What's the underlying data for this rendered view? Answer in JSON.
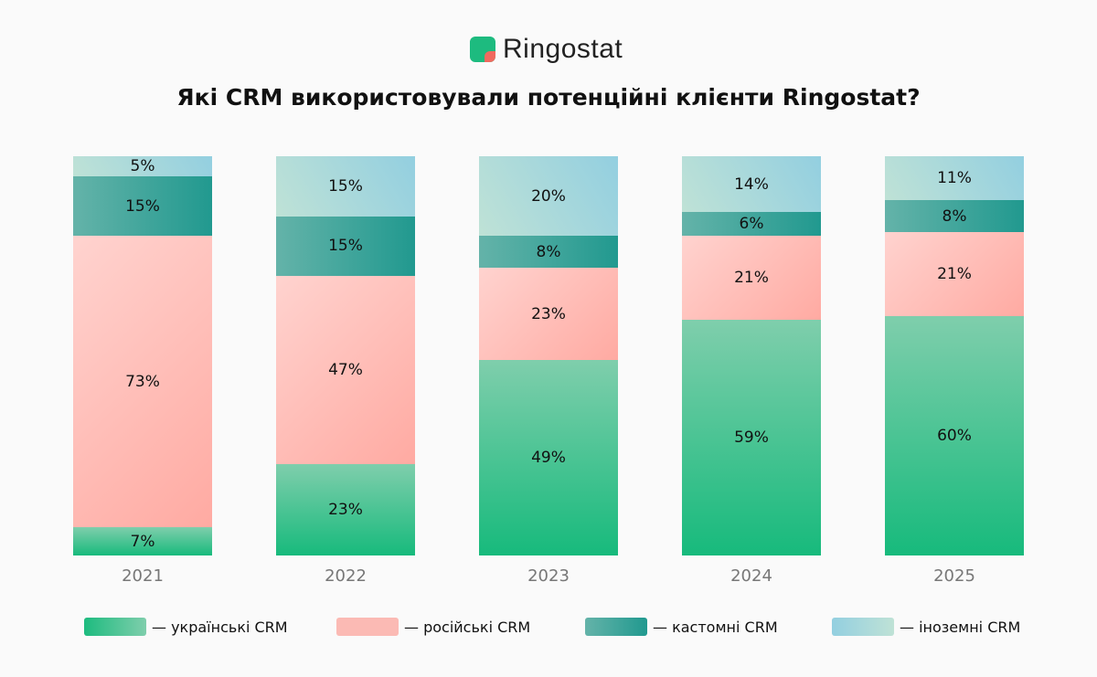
{
  "logo": {
    "text": "Ringostat"
  },
  "chart_data": {
    "type": "bar",
    "stacked": true,
    "title": "Які CRM використовували потенційні клієнти Ringostat?",
    "categories": [
      "2021",
      "2022",
      "2023",
      "2024",
      "2025"
    ],
    "ylim": [
      0,
      100
    ],
    "legend_position": "bottom",
    "series": [
      {
        "name": "— українські CRM",
        "values": [
          7,
          23,
          49,
          59,
          60
        ],
        "color": "#1dbb7f"
      },
      {
        "name": "— російські CRM",
        "values": [
          73,
          47,
          23,
          21,
          21
        ],
        "color": "#fbbab4"
      },
      {
        "name": "— кастомні CRM",
        "values": [
          15,
          15,
          8,
          6,
          8
        ],
        "color": "#21998f"
      },
      {
        "name": "— іноземні CRM",
        "values": [
          5,
          15,
          20,
          14,
          11
        ],
        "color": "#93cfe0"
      }
    ]
  }
}
